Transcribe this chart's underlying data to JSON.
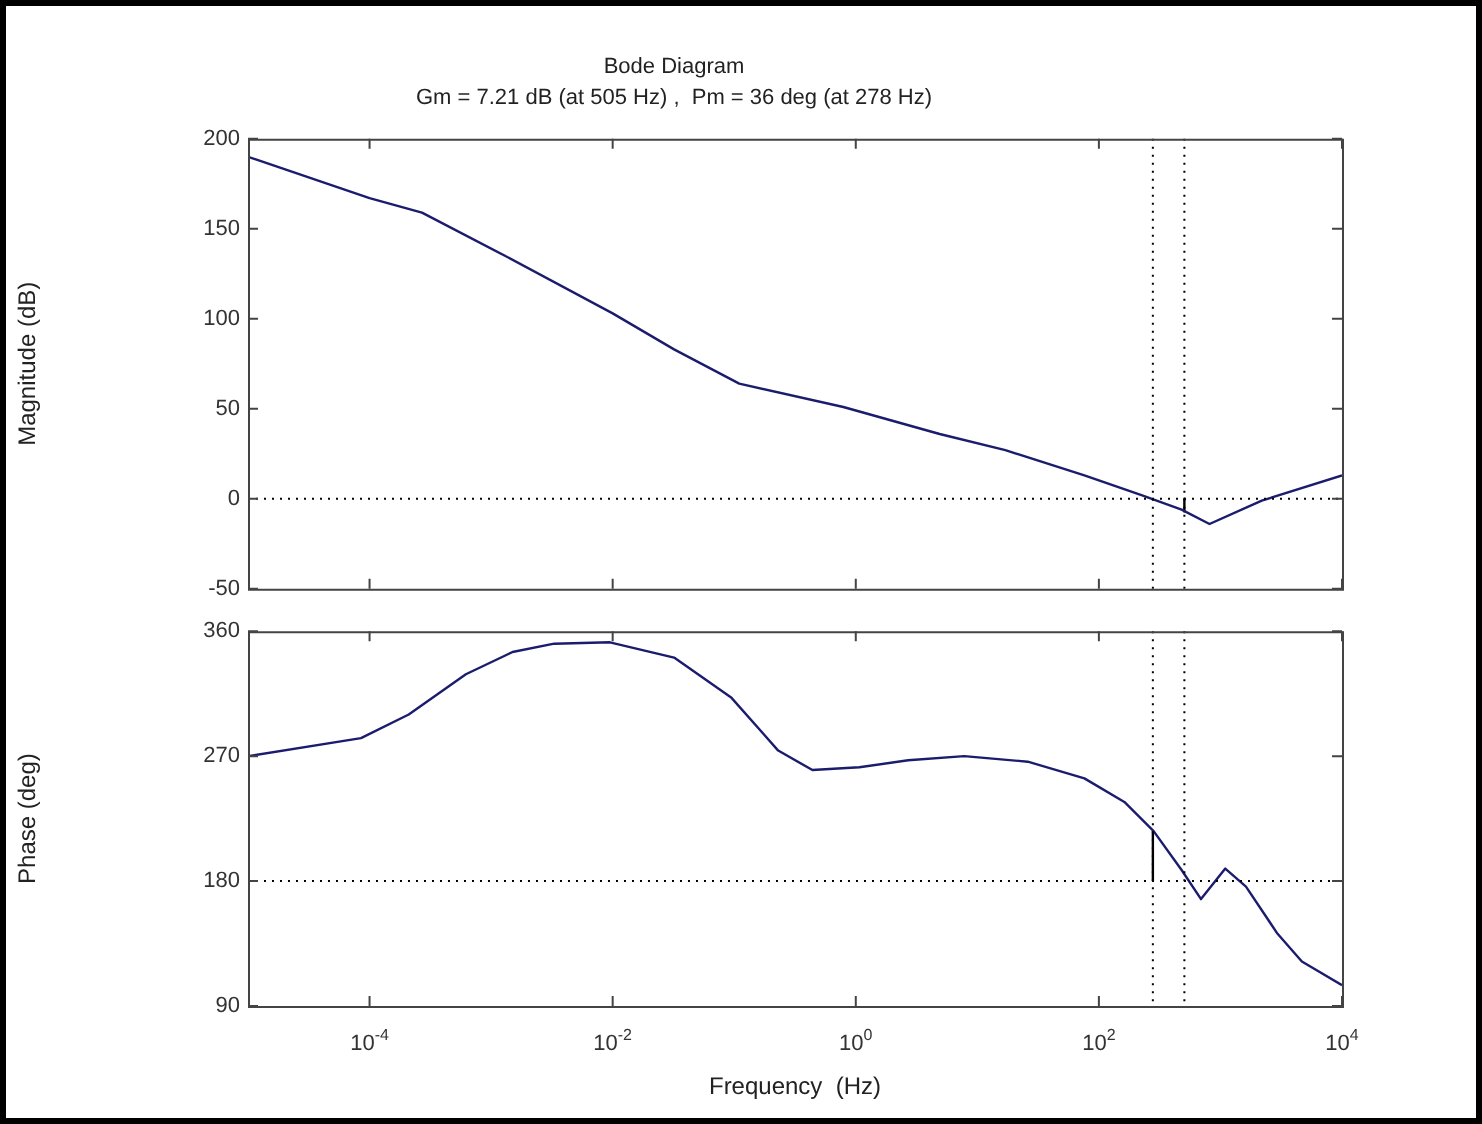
{
  "chart_data": [
    {
      "type": "line",
      "title": "Bode Diagram",
      "subtitle": "Gm = 7.21 dB (at 505 Hz) ,  Pm = 36 deg (at 278 Hz)",
      "ylabel": "Magnitude (dB)",
      "log": "x",
      "xlim": [
        1e-05,
        10000
      ],
      "xticks": [
        {
          "value": 0.0001,
          "label": null
        },
        {
          "value": 0.01,
          "label": null
        },
        {
          "value": 1,
          "label": null
        },
        {
          "value": 100,
          "label": null
        },
        {
          "value": 10000,
          "label": null
        }
      ],
      "ylim": [
        -50,
        200
      ],
      "yticks": [
        -50,
        0,
        50,
        100,
        150,
        200
      ],
      "tick_labels": "y",
      "grid": false,
      "legend": false,
      "marker": "none",
      "line_style": "solid",
      "series": [
        {
          "color": "#1c1c6e",
          "x": [
            1e-05,
            0.0001,
            0.00027,
            0.0013,
            0.01,
            0.032,
            0.11,
            0.79,
            4.9,
            17,
            76,
            224,
            479,
            813,
            2188,
            10000
          ],
          "values": [
            190,
            167,
            159,
            135,
            103,
            83,
            64,
            51,
            36,
            27,
            13,
            2,
            -6,
            -14,
            -1,
            13
          ]
        },
        {
          "color": "#000000",
          "x": [
            505,
            505
          ],
          "values": [
            0,
            -7
          ]
        }
      ],
      "ref_lines": [
        {
          "axis": "y",
          "value": 0,
          "color": "#000000",
          "line_style": "dotted"
        },
        {
          "axis": "x",
          "value": 278,
          "color": "#000000",
          "line_style": "dotted"
        },
        {
          "axis": "x",
          "value": 505,
          "color": "#000000",
          "line_style": "dotted"
        }
      ]
    },
    {
      "type": "line",
      "xlabel": "Frequency  (Hz)",
      "ylabel": "Phase (deg)",
      "log": "x",
      "xlim": [
        1e-05,
        10000
      ],
      "xticks": [
        {
          "value": 0.0001,
          "label": "10$^{-4}$"
        },
        {
          "value": 0.01,
          "label": "10$^{-2}$"
        },
        {
          "value": 1,
          "label": "10$^{0}$"
        },
        {
          "value": 100,
          "label": "10$^{2}$"
        },
        {
          "value": 10000,
          "label": "10$^{4}$"
        }
      ],
      "ylim": [
        90,
        360
      ],
      "yticks": [
        90,
        180,
        270,
        360
      ],
      "grid": false,
      "legend": false,
      "marker": "none",
      "line_style": "solid",
      "series": [
        {
          "color": "#1c1c6e",
          "x": [
            1e-05,
            8.5e-05,
            0.00021,
            0.00062,
            0.0015,
            0.0033,
            0.0095,
            0.032,
            0.095,
            0.23,
            0.44,
            1.07,
            2.7,
            7.8,
            26,
            76,
            162,
            282,
            479,
            692,
            1096,
            1622,
            2951,
            4677,
            10000
          ],
          "values": [
            270,
            283,
            300,
            329,
            345,
            351,
            352,
            341,
            312,
            274,
            260,
            262,
            267,
            270,
            266,
            254,
            237,
            216,
            188,
            167,
            189,
            176,
            142,
            122,
            105
          ]
        },
        {
          "color": "#000000",
          "x": [
            278,
            278
          ],
          "values": [
            180,
            216
          ]
        }
      ],
      "ref_lines": [
        {
          "axis": "y",
          "value": 180,
          "color": "#000000",
          "line_style": "dotted"
        },
        {
          "axis": "x",
          "value": 278,
          "color": "#000000",
          "line_style": "dotted"
        },
        {
          "axis": "x",
          "value": 505,
          "color": "#000000",
          "line_style": "dotted"
        }
      ]
    }
  ]
}
